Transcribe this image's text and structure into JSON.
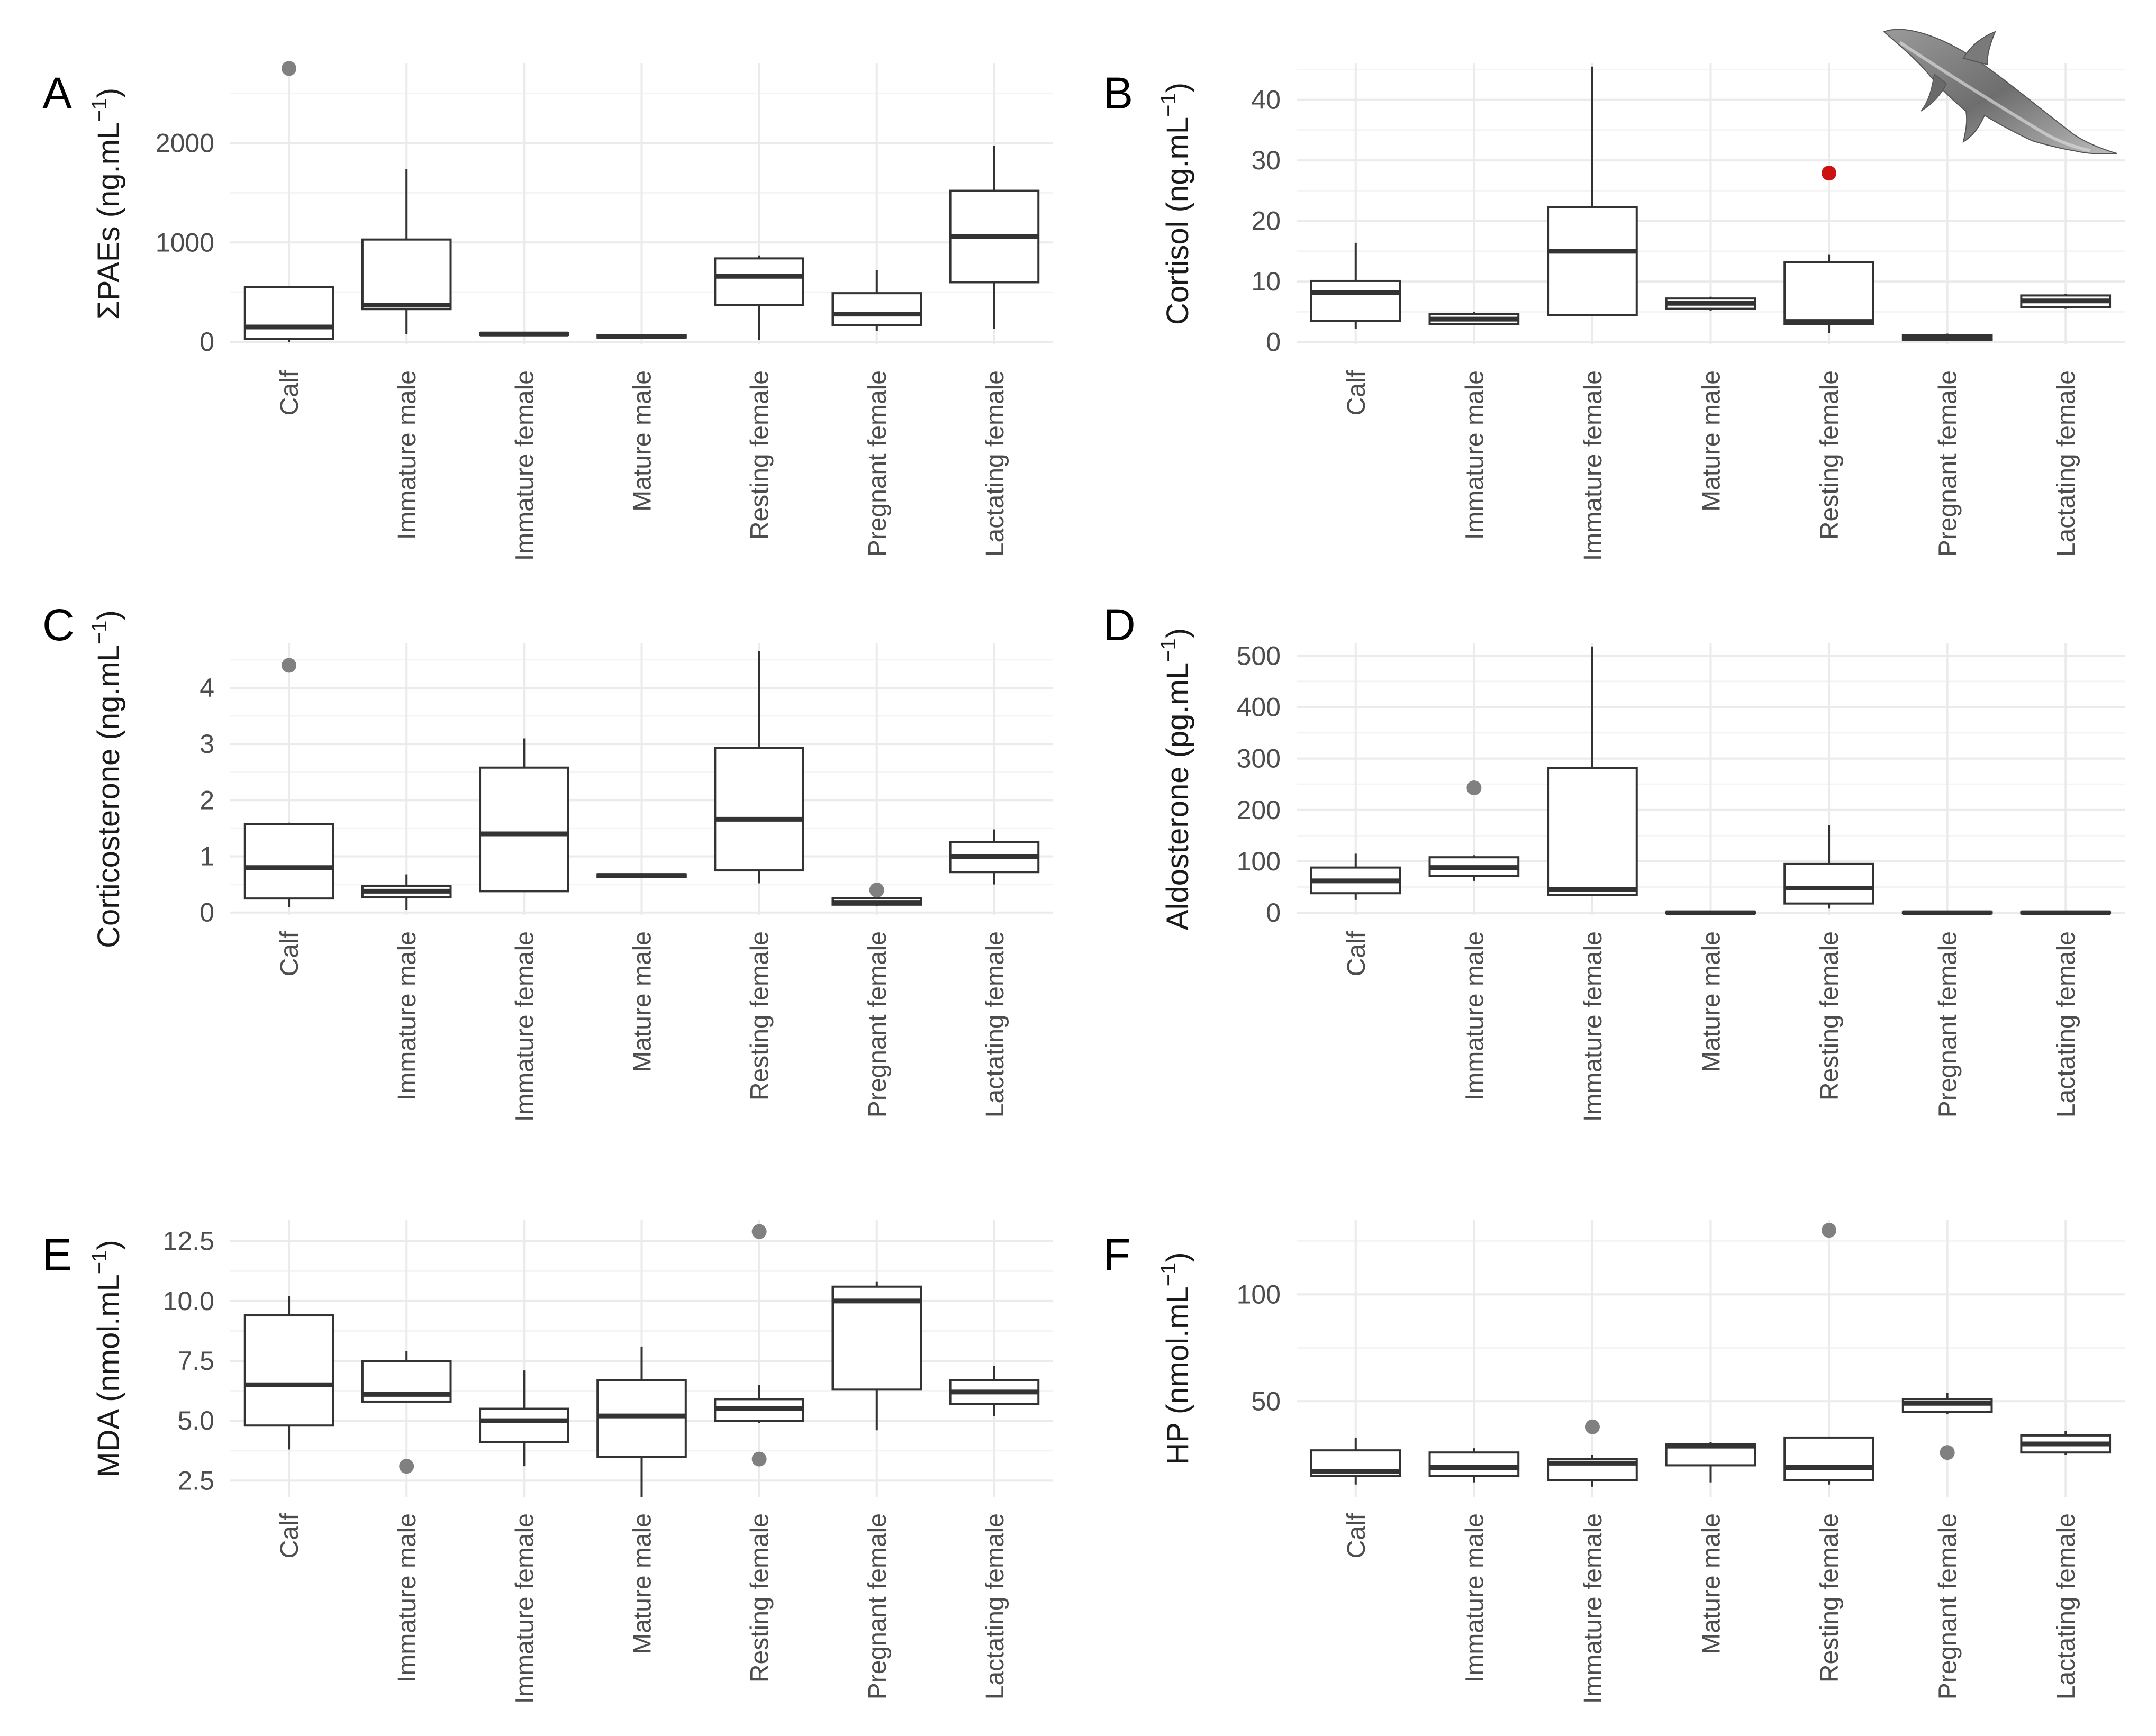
{
  "categories": [
    "Calf",
    "Immature male",
    "Immature female",
    "Mature male",
    "Resting female",
    "Pregnant female",
    "Lactating female"
  ],
  "chart_data": [
    {
      "type": "boxplot",
      "panel_label": "A",
      "ylabel": "ΣPAEs (ng.mL",
      "ylabel_exponent": "−1",
      "ylabel_close": ")",
      "ylim": [
        -20,
        2800
      ],
      "yticks": [
        0,
        1000,
        2000
      ],
      "ytick_labels": [
        "0",
        "1000",
        "2000"
      ],
      "grid": true,
      "boxes": [
        {
          "category": "Calf",
          "whislo": 0,
          "q1": 30,
          "med": 150,
          "q3": 550,
          "whishi": 560,
          "fliers": [
            2750
          ]
        },
        {
          "category": "Immature male",
          "whislo": 80,
          "q1": 330,
          "med": 370,
          "q3": 1030,
          "whishi": 1740,
          "fliers": []
        },
        {
          "category": "Immature female",
          "whislo": 70,
          "q1": 70,
          "med": 80,
          "q3": 90,
          "whishi": 90,
          "fliers": []
        },
        {
          "category": "Mature male",
          "whislo": 40,
          "q1": 45,
          "med": 55,
          "q3": 65,
          "whishi": 65,
          "fliers": []
        },
        {
          "category": "Resting female",
          "whislo": 20,
          "q1": 370,
          "med": 660,
          "q3": 840,
          "whishi": 870,
          "fliers": []
        },
        {
          "category": "Pregnant female",
          "whislo": 110,
          "q1": 170,
          "med": 280,
          "q3": 490,
          "whishi": 720,
          "fliers": []
        },
        {
          "category": "Lactating female",
          "whislo": 130,
          "q1": 600,
          "med": 1060,
          "q3": 1520,
          "whishi": 1970,
          "fliers": []
        }
      ]
    },
    {
      "type": "boxplot",
      "panel_label": "B",
      "ylabel": "Cortisol (ng.mL",
      "ylabel_exponent": "−1",
      "ylabel_close": ")",
      "ylim": [
        -0.3,
        46
      ],
      "yticks": [
        0,
        10,
        20,
        30,
        40
      ],
      "ytick_labels": [
        "0",
        "10",
        "20",
        "30",
        "40"
      ],
      "grid": true,
      "boxes": [
        {
          "category": "Calf",
          "whislo": 2.2,
          "q1": 3.5,
          "med": 8.2,
          "q3": 10.1,
          "whishi": 16.4,
          "fliers": []
        },
        {
          "category": "Immature male",
          "whislo": 2.8,
          "q1": 3.0,
          "med": 3.8,
          "q3": 4.6,
          "whishi": 5.0,
          "fliers": []
        },
        {
          "category": "Immature female",
          "whislo": 4.3,
          "q1": 4.5,
          "med": 15.0,
          "q3": 22.3,
          "whishi": 45.5,
          "fliers": []
        },
        {
          "category": "Mature male",
          "whislo": 5.2,
          "q1": 5.5,
          "med": 6.4,
          "q3": 7.2,
          "whishi": 7.5,
          "fliers": []
        },
        {
          "category": "Resting female",
          "whislo": 1.5,
          "q1": 3.0,
          "med": 3.4,
          "q3": 13.2,
          "whishi": 14.5,
          "fliers": [
            27.9
          ],
          "flier_color": "#cc1111"
        },
        {
          "category": "Pregnant female",
          "whislo": 0.2,
          "q1": 0.4,
          "med": 0.8,
          "q3": 1.1,
          "whishi": 1.4,
          "fliers": []
        },
        {
          "category": "Lactating female",
          "whislo": 5.5,
          "q1": 5.8,
          "med": 6.8,
          "q3": 7.7,
          "whishi": 8.0,
          "fliers": []
        }
      ]
    },
    {
      "type": "boxplot",
      "panel_label": "C",
      "ylabel": "Corticosterone (ng.mL",
      "ylabel_exponent": "−1",
      "ylabel_close": ")",
      "ylim": [
        -0.05,
        4.8
      ],
      "yticks": [
        0,
        1,
        2,
        3,
        4
      ],
      "ytick_labels": [
        "0",
        "1",
        "2",
        "3",
        "4"
      ],
      "grid": true,
      "boxes": [
        {
          "category": "Calf",
          "whislo": 0.1,
          "q1": 0.25,
          "med": 0.8,
          "q3": 1.57,
          "whishi": 1.6,
          "fliers": [
            4.4
          ]
        },
        {
          "category": "Immature male",
          "whislo": 0.05,
          "q1": 0.27,
          "med": 0.38,
          "q3": 0.47,
          "whishi": 0.68,
          "fliers": []
        },
        {
          "category": "Immature female",
          "whislo": 0.38,
          "q1": 0.38,
          "med": 1.4,
          "q3": 2.58,
          "whishi": 3.1,
          "fliers": []
        },
        {
          "category": "Mature male",
          "whislo": 0.62,
          "q1": 0.63,
          "med": 0.66,
          "q3": 0.68,
          "whishi": 0.7,
          "fliers": []
        },
        {
          "category": "Resting female",
          "whislo": 0.52,
          "q1": 0.75,
          "med": 1.66,
          "q3": 2.93,
          "whishi": 4.65,
          "fliers": []
        },
        {
          "category": "Pregnant female",
          "whislo": 0.12,
          "q1": 0.14,
          "med": 0.18,
          "q3": 0.26,
          "whishi": 0.3,
          "fliers": [
            0.4
          ]
        },
        {
          "category": "Lactating female",
          "whislo": 0.5,
          "q1": 0.72,
          "med": 1.0,
          "q3": 1.25,
          "whishi": 1.48,
          "fliers": []
        }
      ]
    },
    {
      "type": "boxplot",
      "panel_label": "D",
      "ylabel": "Aldosterone (pg.mL",
      "ylabel_exponent": "−1",
      "ylabel_close": ")",
      "ylim": [
        -5,
        525
      ],
      "yticks": [
        0,
        100,
        200,
        300,
        400,
        500
      ],
      "ytick_labels": [
        "0",
        "100",
        "200",
        "300",
        "400",
        "500"
      ],
      "grid": true,
      "boxes": [
        {
          "category": "Calf",
          "whislo": 25,
          "q1": 38,
          "med": 62,
          "q3": 88,
          "whishi": 115,
          "fliers": []
        },
        {
          "category": "Immature male",
          "whislo": 62,
          "q1": 72,
          "med": 88,
          "q3": 108,
          "whishi": 112,
          "fliers": [
            243
          ]
        },
        {
          "category": "Immature female",
          "whislo": 32,
          "q1": 35,
          "med": 45,
          "q3": 282,
          "whishi": 518,
          "fliers": []
        },
        {
          "category": "Mature male",
          "whislo": 0,
          "q1": 0,
          "med": 0,
          "q3": 1,
          "whishi": 1,
          "fliers": []
        },
        {
          "category": "Resting female",
          "whislo": 8,
          "q1": 18,
          "med": 48,
          "q3": 95,
          "whishi": 170,
          "fliers": []
        },
        {
          "category": "Pregnant female",
          "whislo": 0,
          "q1": 0,
          "med": 0,
          "q3": 1,
          "whishi": 1,
          "fliers": []
        },
        {
          "category": "Lactating female",
          "whislo": 0,
          "q1": 0,
          "med": 0,
          "q3": 1,
          "whishi": 1,
          "fliers": []
        }
      ]
    },
    {
      "type": "boxplot",
      "panel_label": "E",
      "ylabel": "MDA (nmol.mL",
      "ylabel_exponent": "−1",
      "ylabel_close": ")",
      "ylim": [
        1.8,
        13.4
      ],
      "yticks": [
        2.5,
        5.0,
        7.5,
        10.0,
        12.5
      ],
      "ytick_labels": [
        "2.5",
        "5.0",
        "7.5",
        "10.0",
        "12.5"
      ],
      "grid": true,
      "boxes": [
        {
          "category": "Calf",
          "whislo": 3.8,
          "q1": 4.8,
          "med": 6.5,
          "q3": 9.4,
          "whishi": 10.2,
          "fliers": []
        },
        {
          "category": "Immature male",
          "whislo": 5.8,
          "q1": 5.8,
          "med": 6.1,
          "q3": 7.5,
          "whishi": 7.9,
          "fliers": [
            3.1
          ]
        },
        {
          "category": "Immature female",
          "whislo": 3.1,
          "q1": 4.1,
          "med": 5.0,
          "q3": 5.5,
          "whishi": 7.1,
          "fliers": []
        },
        {
          "category": "Mature male",
          "whislo": 1.8,
          "q1": 3.5,
          "med": 5.2,
          "q3": 6.7,
          "whishi": 8.1,
          "fliers": []
        },
        {
          "category": "Resting female",
          "whislo": 4.9,
          "q1": 5.0,
          "med": 5.5,
          "q3": 5.9,
          "whishi": 6.5,
          "fliers": [
            12.9,
            3.4
          ]
        },
        {
          "category": "Pregnant female",
          "whislo": 4.6,
          "q1": 6.3,
          "med": 10.0,
          "q3": 10.6,
          "whishi": 10.8,
          "fliers": []
        },
        {
          "category": "Lactating female",
          "whislo": 5.2,
          "q1": 5.7,
          "med": 6.2,
          "q3": 6.7,
          "whishi": 7.3,
          "fliers": []
        }
      ]
    },
    {
      "type": "boxplot",
      "panel_label": "F",
      "ylabel": "HP (nmol.mL",
      "ylabel_exponent": "−1",
      "ylabel_close": ")",
      "ylim": [
        5,
        135
      ],
      "yticks": [
        50,
        100
      ],
      "ytick_labels": [
        "50",
        "100"
      ],
      "grid": true,
      "boxes": [
        {
          "category": "Calf",
          "whislo": 11,
          "q1": 15,
          "med": 17,
          "q3": 27,
          "whishi": 33,
          "fliers": []
        },
        {
          "category": "Immature male",
          "whislo": 12,
          "q1": 15,
          "med": 19,
          "q3": 26,
          "whishi": 28,
          "fliers": []
        },
        {
          "category": "Immature female",
          "whislo": 10,
          "q1": 13,
          "med": 21,
          "q3": 23,
          "whishi": 25,
          "fliers": [
            38
          ]
        },
        {
          "category": "Mature male",
          "whislo": 12,
          "q1": 20,
          "med": 29,
          "q3": 30,
          "whishi": 31,
          "fliers": []
        },
        {
          "category": "Resting female",
          "whislo": 11,
          "q1": 13,
          "med": 19,
          "q3": 33,
          "whishi": 33,
          "fliers": [
            130
          ]
        },
        {
          "category": "Pregnant female",
          "whislo": 44,
          "q1": 45,
          "med": 49,
          "q3": 51,
          "whishi": 54,
          "fliers": [
            26
          ]
        },
        {
          "category": "Lactating female",
          "whislo": 25,
          "q1": 26,
          "med": 30,
          "q3": 34,
          "whishi": 36,
          "fliers": []
        }
      ]
    }
  ],
  "colors": {
    "box_line": "#333333",
    "whisker": "#333333",
    "flier": "#808080",
    "highlight_flier": "#cc1111",
    "grid_major": "#ebebeb",
    "grid_minor": "#f4f4f4",
    "tick_text": "#4d4d4d"
  },
  "decoration": {
    "icon": "dolphin-icon"
  }
}
